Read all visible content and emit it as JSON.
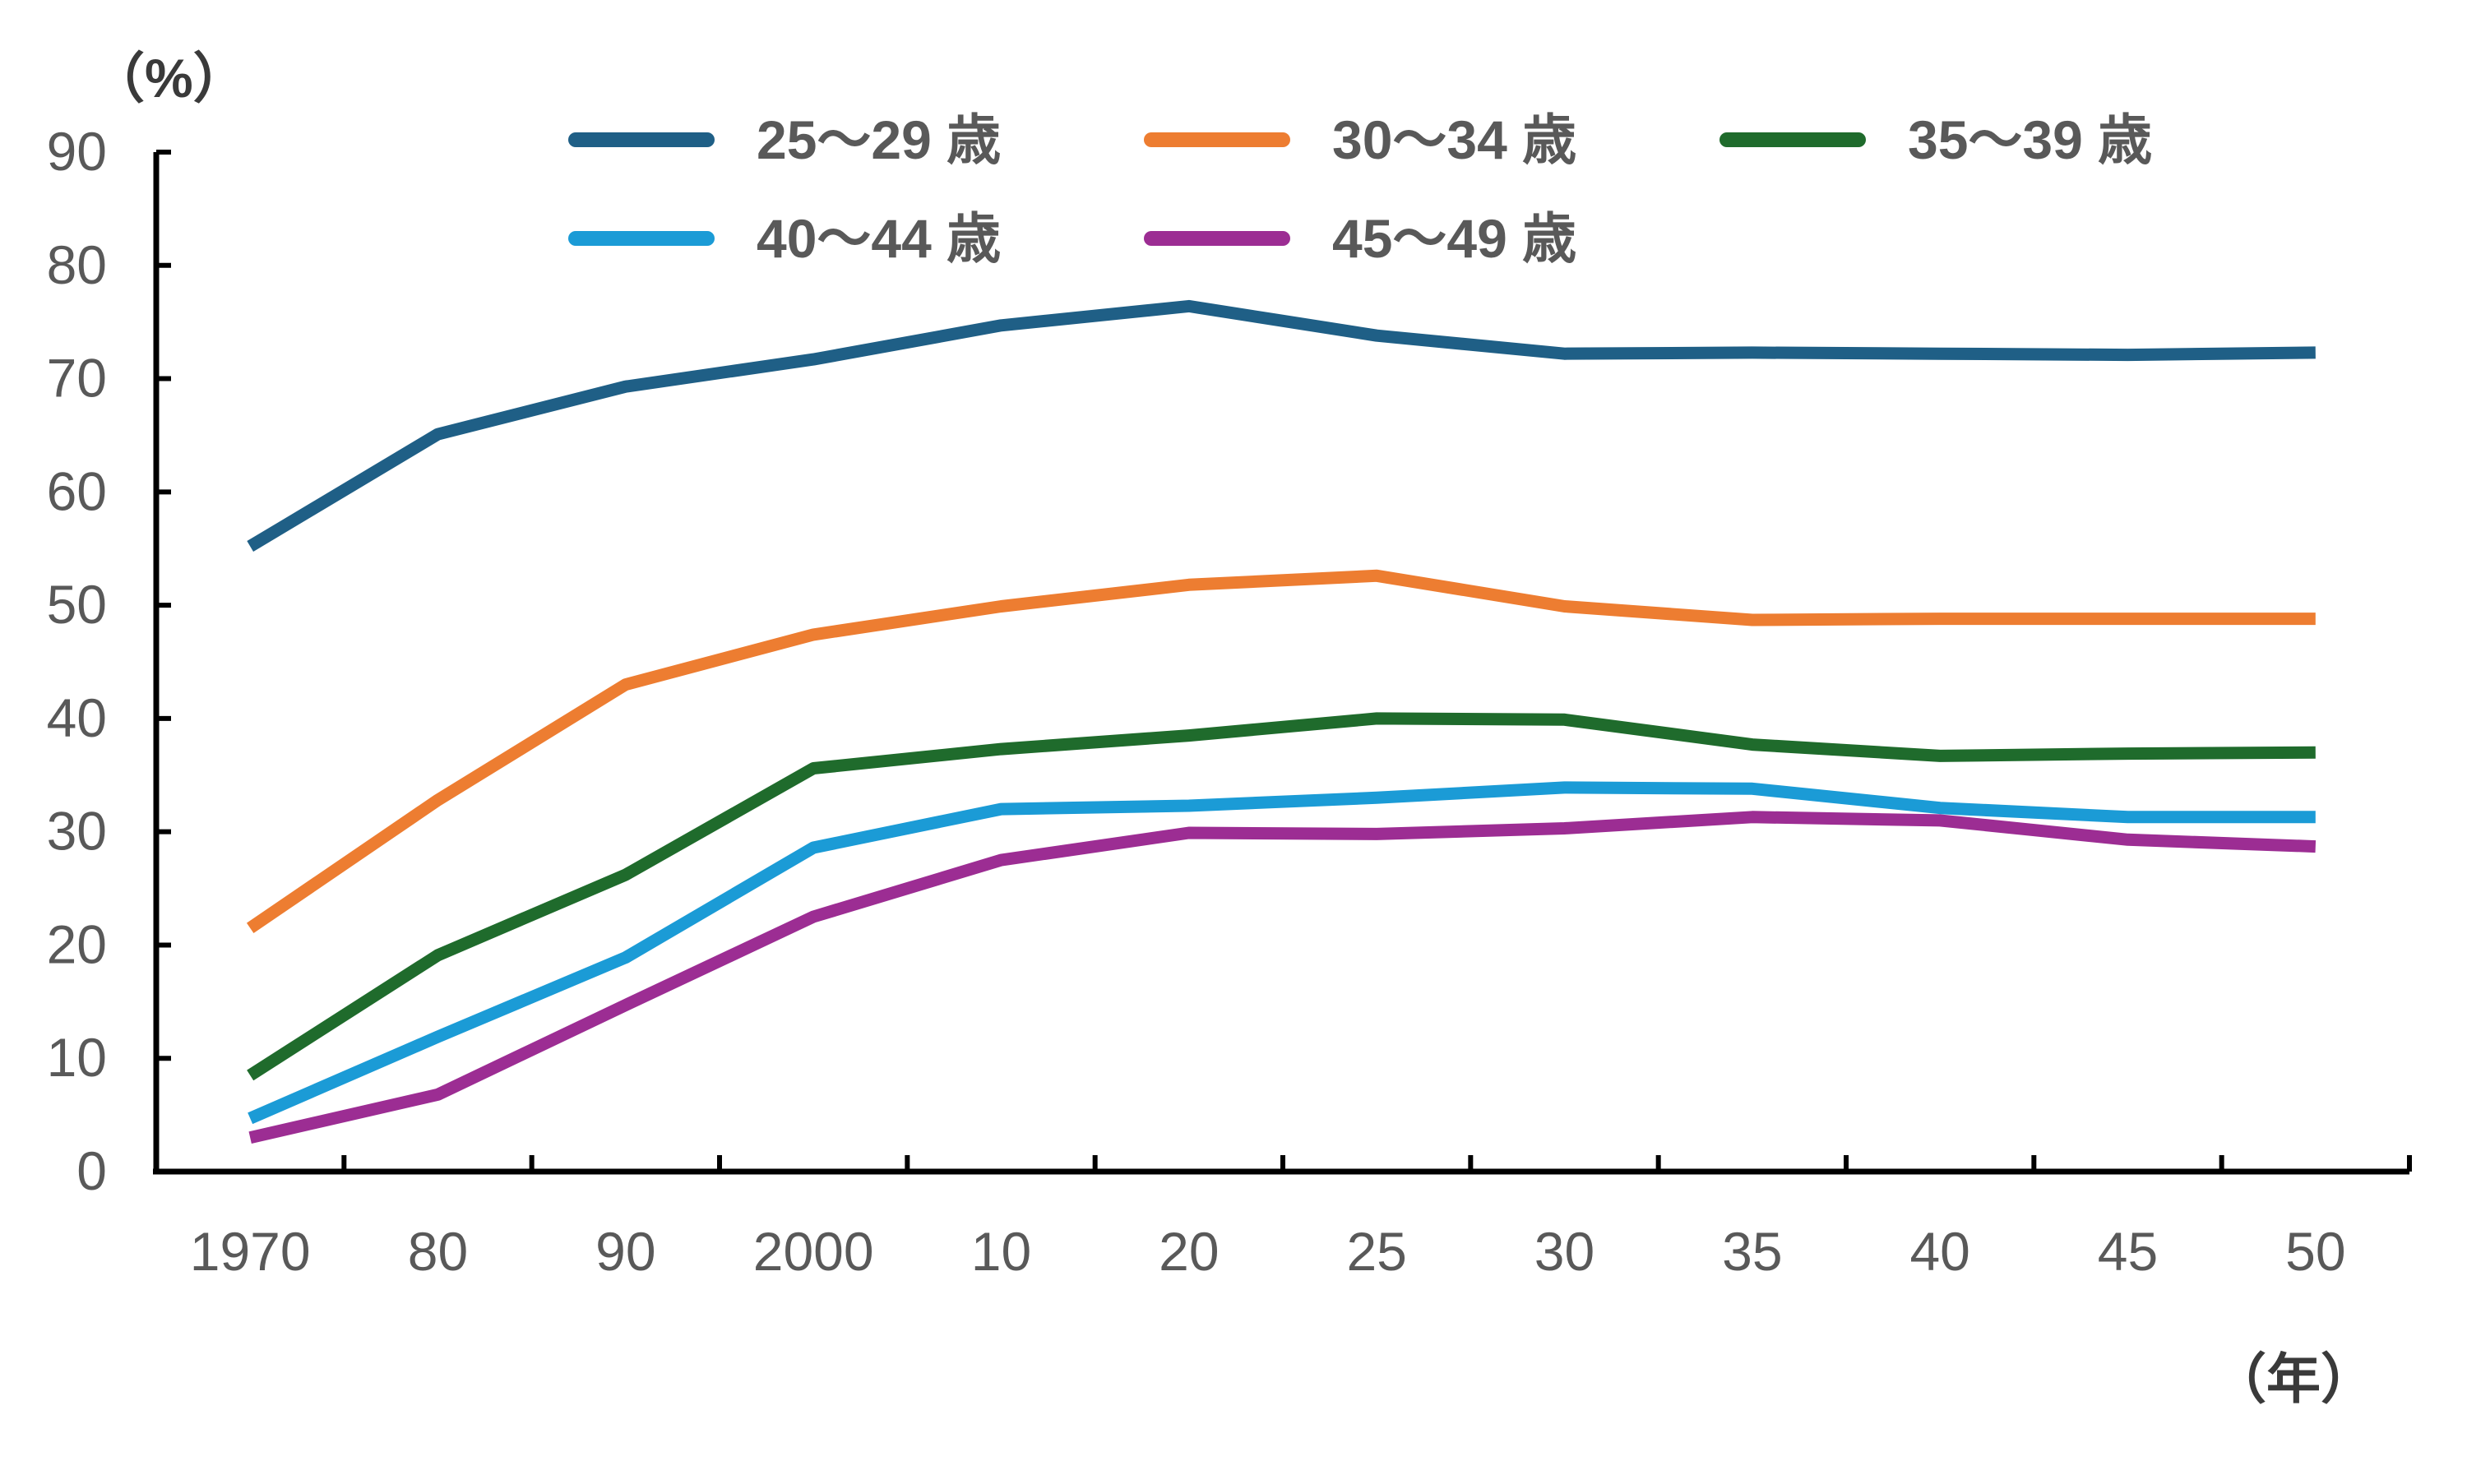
{
  "chart_data": {
    "type": "line",
    "ylabel": "（%）",
    "xlabel": "（年）",
    "ylim": [
      0,
      90
    ],
    "yticks": [
      "0",
      "10",
      "20",
      "30",
      "40",
      "50",
      "60",
      "70",
      "80",
      "90"
    ],
    "categories": [
      "1970",
      "80",
      "90",
      "2000",
      "10",
      "20",
      "25",
      "30",
      "35",
      "40",
      "45",
      "50"
    ],
    "grid": false,
    "legend_position": "top",
    "series": [
      {
        "name": "25～29 歳",
        "color": "#1f5f86",
        "values": [
          55.2,
          65.1,
          69.3,
          71.7,
          74.7,
          76.4,
          73.8,
          72.2,
          72.3,
          72.2,
          72.1,
          72.3
        ]
      },
      {
        "name": "30～34 歳",
        "color": "#ed7d31",
        "values": [
          21.5,
          32.8,
          43.0,
          47.4,
          49.9,
          51.8,
          52.6,
          49.9,
          48.7,
          48.8,
          48.8,
          48.8
        ]
      },
      {
        "name": "35～39 歳",
        "color": "#1f6b2c",
        "values": [
          8.5,
          19.1,
          26.2,
          35.6,
          37.3,
          38.5,
          40.0,
          39.9,
          37.7,
          36.7,
          36.9,
          37.0
        ]
      },
      {
        "name": "40～44 歳",
        "color": "#1b9bd6",
        "values": [
          4.7,
          11.9,
          18.9,
          28.6,
          32.0,
          32.3,
          33.0,
          33.9,
          33.8,
          32.1,
          31.3,
          31.3
        ]
      },
      {
        "name": "45～49 歳",
        "color": "#9c2d93",
        "values": [
          3.0,
          6.8,
          14.7,
          22.5,
          27.5,
          29.9,
          29.8,
          30.3,
          31.3,
          31.0,
          29.3,
          28.7
        ]
      }
    ]
  }
}
